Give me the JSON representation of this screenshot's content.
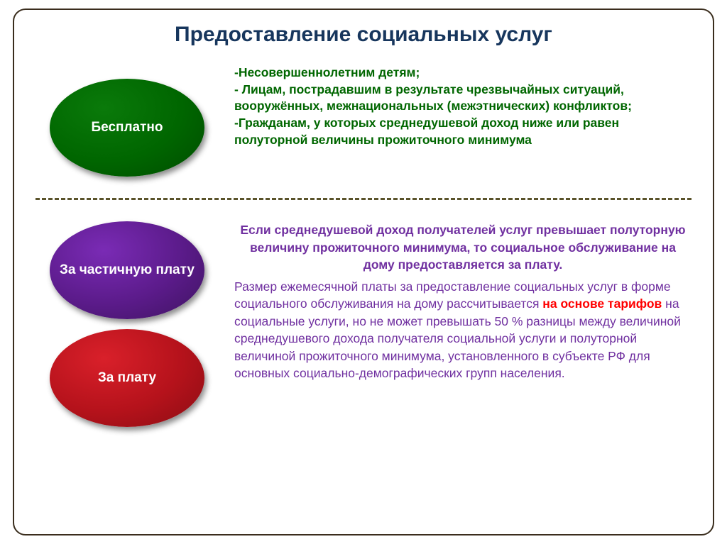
{
  "title": {
    "text": "Предоставление социальных услуг",
    "color": "#17365d"
  },
  "divider_color": "#5a532b",
  "ovals": {
    "free": {
      "label": "Бесплатно",
      "bg": "#006600",
      "grad_inner": "#0a7a0a",
      "grad_outer": "#004b00"
    },
    "partial": {
      "label": "За частичную плату",
      "bg": "#5b1b8a",
      "grad_inner": "#7a2bb5",
      "grad_outer": "#3e1360"
    },
    "paid": {
      "label": "За плату",
      "bg": "#b5121b",
      "grad_inner": "#d9202a",
      "grad_outer": "#8a0d14"
    }
  },
  "top_list": {
    "color": "#006600",
    "items": [
      "-Несовершеннолетним детям;",
      "- Лицам, пострадавшим в результате чрезвычайных ситуаций, вооружённых, межнациональных (межэтнических) конфликтов;",
      "-Гражданам, у которых среднедушевой доход ниже  или равен полуторной величины прожиточного минимума"
    ]
  },
  "bottom": {
    "intro_color": "#7030a0",
    "intro": "Если среднедушевой доход получателей услуг превышает полуторную величину прожиточного минимума, то социальное обслуживание на дому предоставляется за плату.",
    "body_color": "#7030a0",
    "body_part1": "Размер ежемесячной платы за предоставление социальных услуг  в форме социального обслуживания на дому  рассчитывается ",
    "red_phrase": "на основе тарифов",
    "red_color": "#ff0000",
    "body_part2": " на социальные услуги, но не может  превышать 50 %  разницы между величиной среднедушевого дохода получателя социальной услуги и полуторной величиной прожиточного  минимума, установленного в субъекте РФ для основных социально-демографических групп населения.",
    "trailing_dot_color": "#000000"
  }
}
